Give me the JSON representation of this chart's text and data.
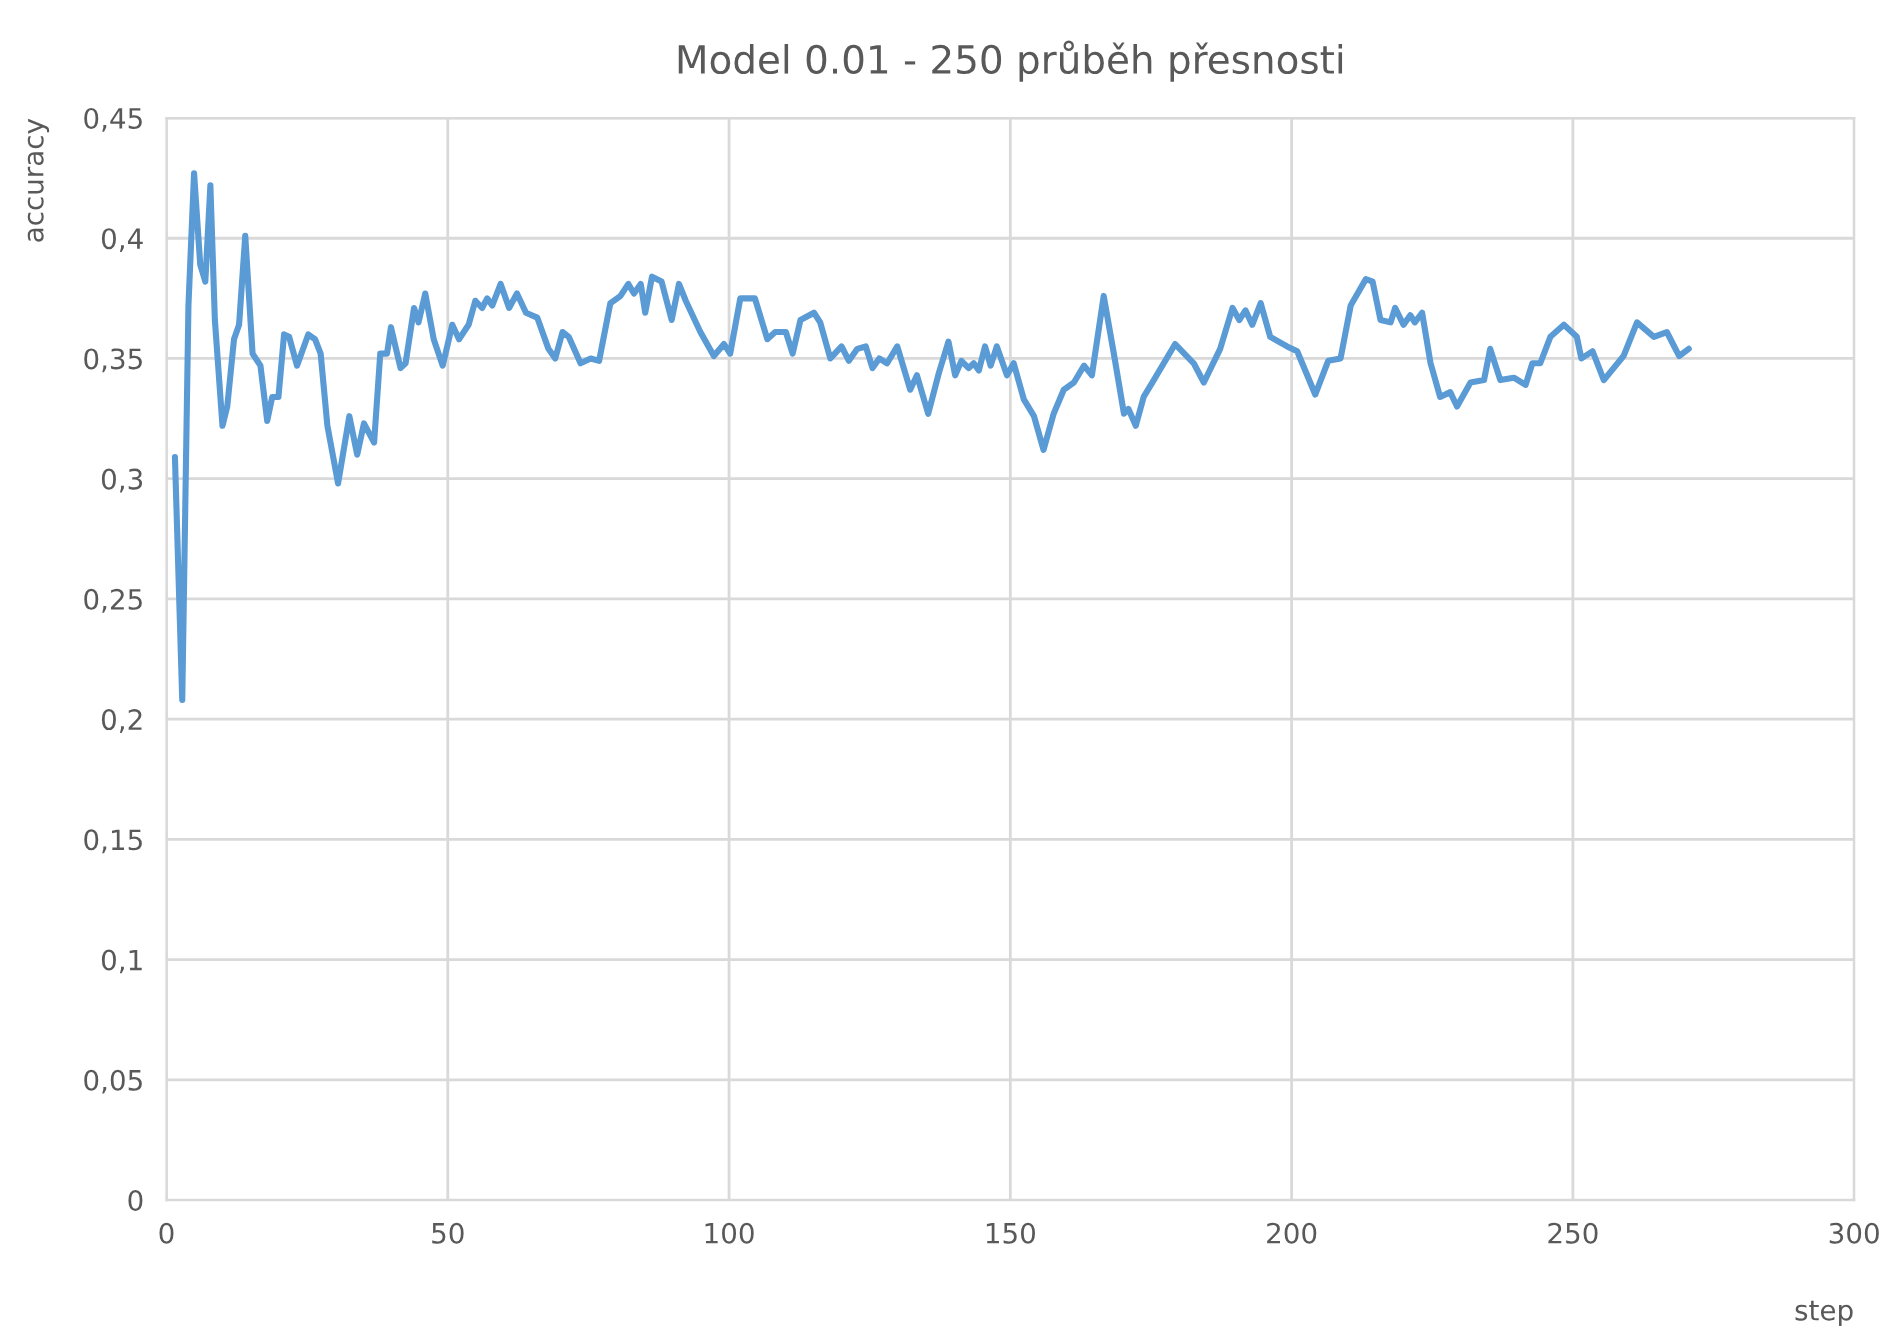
{
  "chart_data": {
    "type": "line",
    "title": "Model 0.01 - 250 průběh přesnosti",
    "xlabel": "step",
    "ylabel": "accuracy",
    "xlim": [
      0,
      300
    ],
    "xticks": [
      0,
      50,
      100,
      150,
      200,
      250,
      300
    ],
    "ylim": [
      0,
      0.45
    ],
    "yticks": [
      {
        "value": 0,
        "label": "0"
      },
      {
        "value": 0.05,
        "label": "0,05"
      },
      {
        "value": 0.1,
        "label": "0,1"
      },
      {
        "value": 0.15,
        "label": "0,15"
      },
      {
        "value": 0.2,
        "label": "0,2"
      },
      {
        "value": 0.25,
        "label": "0,25"
      },
      {
        "value": 0.3,
        "label": "0,3"
      },
      {
        "value": 0.35,
        "label": "0,35"
      },
      {
        "value": 0.4,
        "label": "0,4"
      },
      {
        "value": 0.45,
        "label": "0,45"
      }
    ],
    "grid": true,
    "legend": false,
    "marker": "none",
    "line_style": "solid",
    "series": [
      {
        "color": "#5b9bd5",
        "x": [
          1.5,
          2.8,
          3.9,
          4.9,
          6.0,
          6.9,
          7.8,
          8.6,
          9.95,
          10.8,
          12.0,
          12.9,
          14.0,
          15.3,
          16.7,
          17.9,
          18.8,
          19.9,
          20.9,
          21.8,
          23.2,
          25.2,
          26.4,
          27.4,
          28.6,
          30.5,
          32.5,
          33.9,
          35.1,
          36.9,
          38.0,
          39.2,
          39.9,
          41.6,
          42.5,
          44.0,
          44.8,
          46.0,
          47.5,
          49.1,
          50.8,
          52.0,
          53.7,
          54.9,
          56.1,
          57.0,
          57.9,
          59.4,
          60.9,
          62.3,
          63.9,
          65.9,
          67.9,
          69.1,
          70.4,
          71.5,
          73.6,
          75.4,
          76.9,
          78.9,
          80.7,
          82.1,
          83.1,
          84.3,
          85.1,
          86.3,
          88.0,
          89.8,
          91.1,
          92.3,
          94.9,
          97.3,
          99.1,
          100.2,
          102.0,
          104.6,
          106.8,
          108.2,
          110.1,
          111.3,
          112.7,
          115.1,
          116.2,
          118.0,
          120.0,
          121.3,
          122.8,
          124.3,
          125.5,
          126.7,
          128.1,
          129.9,
          132.2,
          133.4,
          135.4,
          137.3,
          139.0,
          140.2,
          141.3,
          142.6,
          143.5,
          144.4,
          145.5,
          146.5,
          147.6,
          149.4,
          150.6,
          152.4,
          154.2,
          155.9,
          157.7,
          159.5,
          161.3,
          163.1,
          164.5,
          166.6,
          168.4,
          170.2,
          171.0,
          172.3,
          173.7,
          175.5,
          179.3,
          182.6,
          184.4,
          187.3,
          189.5,
          190.7,
          191.8,
          193.0,
          194.5,
          196.2,
          199.2,
          201.0,
          204.2,
          206.5,
          208.7,
          210.5,
          213.2,
          214.4,
          215.8,
          217.6,
          218.4,
          219.9,
          221.1,
          221.9,
          223.2,
          224.7,
          226.4,
          228.2,
          229.4,
          231.8,
          234.2,
          235.3,
          237.1,
          239.5,
          241.6,
          242.8,
          244.2,
          246.0,
          248.4,
          250.7,
          251.5,
          253.5,
          255.5,
          259.0,
          261.4,
          264.4,
          266.7,
          268.9,
          270.6
        ],
        "values": [
          0.309,
          0.208,
          0.372,
          0.427,
          0.389,
          0.382,
          0.422,
          0.366,
          0.322,
          0.33,
          0.358,
          0.364,
          0.401,
          0.352,
          0.347,
          0.324,
          0.334,
          0.334,
          0.36,
          0.359,
          0.347,
          0.36,
          0.358,
          0.352,
          0.322,
          0.298,
          0.326,
          0.31,
          0.323,
          0.315,
          0.352,
          0.352,
          0.363,
          0.346,
          0.348,
          0.371,
          0.365,
          0.377,
          0.358,
          0.347,
          0.364,
          0.358,
          0.364,
          0.374,
          0.371,
          0.375,
          0.372,
          0.381,
          0.371,
          0.377,
          0.369,
          0.367,
          0.354,
          0.35,
          0.361,
          0.359,
          0.348,
          0.35,
          0.349,
          0.373,
          0.376,
          0.381,
          0.377,
          0.381,
          0.369,
          0.384,
          0.382,
          0.366,
          0.381,
          0.374,
          0.361,
          0.351,
          0.356,
          0.352,
          0.375,
          0.375,
          0.358,
          0.361,
          0.361,
          0.352,
          0.366,
          0.369,
          0.365,
          0.35,
          0.355,
          0.349,
          0.354,
          0.355,
          0.346,
          0.35,
          0.348,
          0.355,
          0.337,
          0.343,
          0.327,
          0.344,
          0.357,
          0.343,
          0.349,
          0.346,
          0.348,
          0.345,
          0.355,
          0.347,
          0.355,
          0.343,
          0.348,
          0.333,
          0.326,
          0.312,
          0.327,
          0.337,
          0.34,
          0.347,
          0.343,
          0.376,
          0.352,
          0.327,
          0.329,
          0.322,
          0.334,
          0.341,
          0.356,
          0.348,
          0.34,
          0.354,
          0.371,
          0.366,
          0.37,
          0.364,
          0.373,
          0.359,
          0.355,
          0.353,
          0.335,
          0.349,
          0.35,
          0.372,
          0.383,
          0.382,
          0.366,
          0.365,
          0.371,
          0.364,
          0.368,
          0.365,
          0.369,
          0.348,
          0.334,
          0.336,
          0.33,
          0.34,
          0.341,
          0.354,
          0.341,
          0.342,
          0.339,
          0.348,
          0.348,
          0.359,
          0.364,
          0.359,
          0.35,
          0.353,
          0.341,
          0.351,
          0.365,
          0.359,
          0.361,
          0.351,
          0.354
        ]
      }
    ]
  }
}
